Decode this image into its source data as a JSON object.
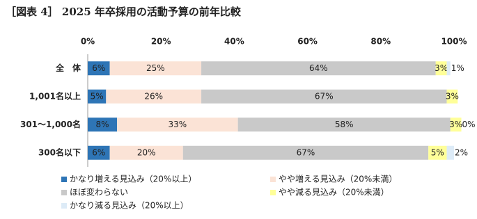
{
  "chart_data": {
    "type": "stacked-bar-horizontal",
    "title": "［図表 4］ 2025 年卒採用の活動予算の前年比較",
    "categories": [
      "全　体",
      "1,001名以上",
      "301～1,000名",
      "300名以下"
    ],
    "series": [
      {
        "name": "かなり増える見込み（20%以上）",
        "color": "#2e75b6",
        "values": [
          6,
          5,
          8,
          6
        ],
        "value_labels": [
          "6%",
          "5%",
          "8%",
          "6%"
        ]
      },
      {
        "name": "やや増える見込み（20%未満）",
        "color": "#fbe3d6",
        "values": [
          25,
          26,
          33,
          20
        ],
        "value_labels": [
          "25%",
          "26%",
          "33%",
          "20%"
        ]
      },
      {
        "name": "ほぼ変わらない",
        "color": "#c9c9c9",
        "values": [
          64,
          67,
          58,
          67
        ],
        "value_labels": [
          "64%",
          "67%",
          "58%",
          "67%"
        ]
      },
      {
        "name": "やや減る見込み（20%未満）",
        "color": "#ffff99",
        "values": [
          3,
          3,
          3,
          5
        ],
        "value_labels": [
          "3%",
          "3%",
          "3%",
          "5%"
        ]
      },
      {
        "name": "かなり減る見込み（20%以上）",
        "color": "#ddebf7",
        "values": [
          1,
          null,
          0,
          2
        ],
        "value_labels": [
          "1%",
          null,
          "0%",
          "2%"
        ]
      }
    ],
    "xlim": [
      0,
      100
    ],
    "xticks": [
      {
        "value": 0,
        "label": "0%"
      },
      {
        "value": 20,
        "label": "20%"
      },
      {
        "value": 40,
        "label": "40%"
      },
      {
        "value": 60,
        "label": "60%"
      },
      {
        "value": 80,
        "label": "80%"
      },
      {
        "value": 100,
        "label": "100%"
      }
    ]
  }
}
